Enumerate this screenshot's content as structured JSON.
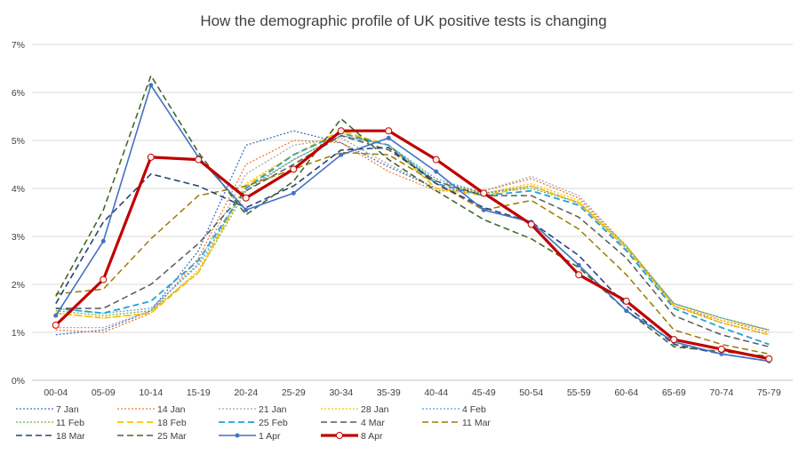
{
  "chart_data": {
    "type": "line",
    "title": "How the demographic profile of UK positive tests is changing",
    "xlabel": "",
    "ylabel": "",
    "ylim": [
      0,
      7
    ],
    "ytick_labels": [
      "0%",
      "1%",
      "2%",
      "3%",
      "4%",
      "5%",
      "6%",
      "7%"
    ],
    "grid": "horizontal",
    "legend_position": "bottom",
    "categories": [
      "00-04",
      "05-09",
      "10-14",
      "15-19",
      "20-24",
      "25-29",
      "30-34",
      "35-39",
      "40-44",
      "45-49",
      "50-54",
      "55-59",
      "60-64",
      "65-69",
      "70-74",
      "75-79"
    ],
    "series": [
      {
        "name": "7 Jan",
        "color": "#4472C4",
        "dash": "2,2",
        "width": 1.3,
        "marker": false,
        "values": [
          0.95,
          1.05,
          1.45,
          2.7,
          4.9,
          5.2,
          4.95,
          4.45,
          4.0,
          3.9,
          4.05,
          3.7,
          2.75,
          1.55,
          1.2,
          0.95
        ]
      },
      {
        "name": "14 Jan",
        "color": "#ED7D31",
        "dash": "2,2",
        "width": 1.3,
        "marker": false,
        "values": [
          1.05,
          1.0,
          1.4,
          2.55,
          4.5,
          5.0,
          4.95,
          4.35,
          3.95,
          3.95,
          4.2,
          3.8,
          2.8,
          1.55,
          1.25,
          1.0
        ]
      },
      {
        "name": "21 Jan",
        "color": "#A5A5A5",
        "dash": "2,2",
        "width": 1.3,
        "marker": false,
        "values": [
          1.1,
          1.1,
          1.45,
          2.45,
          4.3,
          4.9,
          5.05,
          4.5,
          4.0,
          3.95,
          4.25,
          3.85,
          2.8,
          1.6,
          1.3,
          1.05
        ]
      },
      {
        "name": "28 Jan",
        "color": "#FFC000",
        "dash": "2,2",
        "width": 1.3,
        "marker": false,
        "values": [
          1.4,
          1.3,
          1.4,
          2.3,
          4.1,
          4.7,
          5.15,
          4.9,
          4.1,
          3.9,
          4.1,
          3.75,
          2.8,
          1.6,
          1.25,
          1.05
        ]
      },
      {
        "name": "4 Feb",
        "color": "#5B9BD5",
        "dash": "2,2",
        "width": 1.3,
        "marker": false,
        "values": [
          1.5,
          1.4,
          1.5,
          2.4,
          4.0,
          4.6,
          5.1,
          4.9,
          4.2,
          3.9,
          4.05,
          3.7,
          2.75,
          1.6,
          1.3,
          1.05
        ]
      },
      {
        "name": "11 Feb",
        "color": "#70AD47",
        "dash": "2,2",
        "width": 1.3,
        "marker": false,
        "values": [
          1.45,
          1.35,
          1.45,
          2.25,
          3.95,
          4.6,
          5.1,
          4.9,
          4.15,
          3.9,
          4.0,
          3.7,
          2.8,
          1.6,
          1.3,
          1.05
        ]
      },
      {
        "name": "18 Feb",
        "color": "#FFC000",
        "dash": "7,4",
        "width": 1.8,
        "marker": false,
        "values": [
          1.4,
          1.3,
          1.4,
          2.25,
          4.05,
          4.7,
          5.2,
          4.9,
          4.0,
          3.85,
          4.05,
          3.7,
          2.75,
          1.55,
          1.2,
          0.95
        ]
      },
      {
        "name": "25 Feb",
        "color": "#1FA3D6",
        "dash": "7,4",
        "width": 1.8,
        "marker": false,
        "values": [
          1.5,
          1.4,
          1.65,
          2.5,
          4.0,
          4.7,
          5.15,
          4.9,
          4.1,
          3.85,
          3.95,
          3.65,
          2.7,
          1.5,
          1.1,
          0.75
        ]
      },
      {
        "name": "4 Mar",
        "color": "#595959",
        "dash": "7,4",
        "width": 1.5,
        "marker": false,
        "values": [
          1.5,
          1.5,
          2.0,
          2.85,
          3.95,
          4.5,
          5.1,
          4.8,
          4.15,
          3.85,
          3.85,
          3.4,
          2.55,
          1.35,
          0.95,
          0.7
        ]
      },
      {
        "name": "11 Mar",
        "color": "#9C7A00",
        "dash": "7,4",
        "width": 1.5,
        "marker": false,
        "values": [
          1.8,
          1.9,
          2.95,
          3.85,
          4.05,
          4.4,
          4.75,
          4.7,
          4.1,
          3.55,
          3.75,
          3.15,
          2.2,
          1.05,
          0.75,
          0.55
        ]
      },
      {
        "name": "18 Mar",
        "color": "#264478",
        "dash": "7,4",
        "width": 1.6,
        "marker": false,
        "values": [
          1.6,
          3.3,
          4.3,
          4.05,
          3.6,
          4.05,
          4.8,
          4.85,
          4.1,
          3.6,
          3.3,
          2.6,
          1.55,
          0.75,
          0.55,
          0.4
        ]
      },
      {
        "name": "25 Mar",
        "color": "#43682B",
        "dash": "7,4",
        "width": 1.6,
        "marker": false,
        "values": [
          1.75,
          3.55,
          6.35,
          4.75,
          3.45,
          4.15,
          5.45,
          4.6,
          3.95,
          3.35,
          2.95,
          2.35,
          1.45,
          0.7,
          0.6,
          0.5
        ]
      },
      {
        "name": "1 Apr",
        "color": "#4472C4",
        "dash": "",
        "width": 1.6,
        "marker": "dot",
        "values": [
          1.35,
          2.9,
          6.15,
          4.65,
          3.55,
          3.9,
          4.7,
          5.05,
          4.35,
          3.55,
          3.3,
          2.4,
          1.45,
          0.8,
          0.55,
          0.4
        ]
      },
      {
        "name": "8 Apr",
        "color": "#C00000",
        "dash": "",
        "width": 3.2,
        "marker": "circle",
        "values": [
          1.15,
          2.1,
          4.65,
          4.6,
          3.8,
          4.4,
          5.2,
          5.2,
          4.6,
          3.9,
          3.25,
          2.2,
          1.65,
          0.85,
          0.65,
          0.45
        ]
      }
    ]
  }
}
